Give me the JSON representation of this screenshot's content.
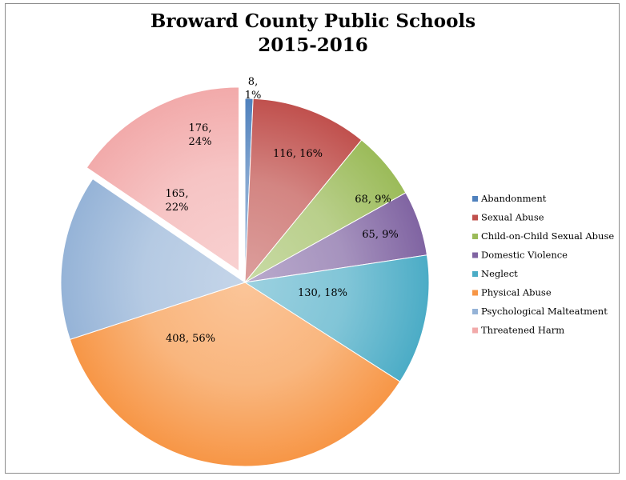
{
  "chart_data": {
    "type": "pie",
    "title": [
      "Broward County Public Schools",
      "2015-2016"
    ],
    "legend_position": "right",
    "slices": [
      {
        "name": "Abandonment",
        "value": 8,
        "label": [
          "8,",
          "1%"
        ],
        "color": "#4f81bd"
      },
      {
        "name": "Sexual Abuse",
        "value": 116,
        "label": [
          "116, 16%"
        ],
        "color": "#c0504d"
      },
      {
        "name": "Child-on-Child Sexual Abuse",
        "value": 68,
        "label": [
          "68, 9%"
        ],
        "color": "#9bbb59"
      },
      {
        "name": "Domestic Violence",
        "value": 65,
        "label": [
          "65, 9%"
        ],
        "color": "#8064a2"
      },
      {
        "name": "Neglect",
        "value": 130,
        "label": [
          "130, 18%"
        ],
        "color": "#4bacc6"
      },
      {
        "name": "Physical Abuse",
        "value": 408,
        "label": [
          "408, 56%"
        ],
        "color": "#f79646"
      },
      {
        "name": "Psychological Malteatment",
        "value": 165,
        "label": [
          "165,",
          "22%"
        ],
        "color": "#95b3d7"
      },
      {
        "name": "Threatened Harm",
        "value": 176,
        "label": [
          "176,",
          "24%"
        ],
        "color": "#f2aaaa"
      }
    ]
  }
}
